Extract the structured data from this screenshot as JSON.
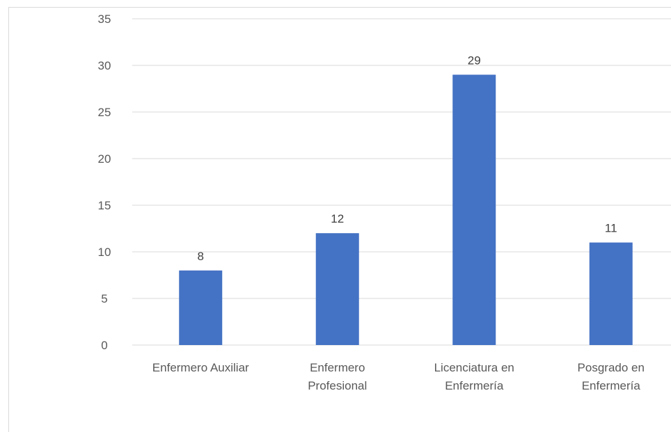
{
  "chart_data": {
    "type": "bar",
    "categories": [
      [
        "Enfermero Auxiliar"
      ],
      [
        "Enfermero",
        "Profesional"
      ],
      [
        "Licenciatura en",
        "Enfermería"
      ],
      [
        "Posgrado en",
        "Enfermería"
      ]
    ],
    "values": [
      8,
      12,
      29,
      11
    ],
    "data_labels": [
      "8",
      "12",
      "29",
      "11"
    ],
    "ylim": [
      0,
      35
    ],
    "yticks": [
      0,
      5,
      10,
      15,
      20,
      25,
      30,
      35
    ],
    "ytick_labels": [
      "0",
      "5",
      "10",
      "15",
      "20",
      "25",
      "30",
      "35"
    ],
    "title": "",
    "xlabel": "",
    "ylabel": "",
    "grid": true,
    "legend": "none",
    "bar_color": "#4472c4",
    "grid_color": "#d9d9d9"
  }
}
